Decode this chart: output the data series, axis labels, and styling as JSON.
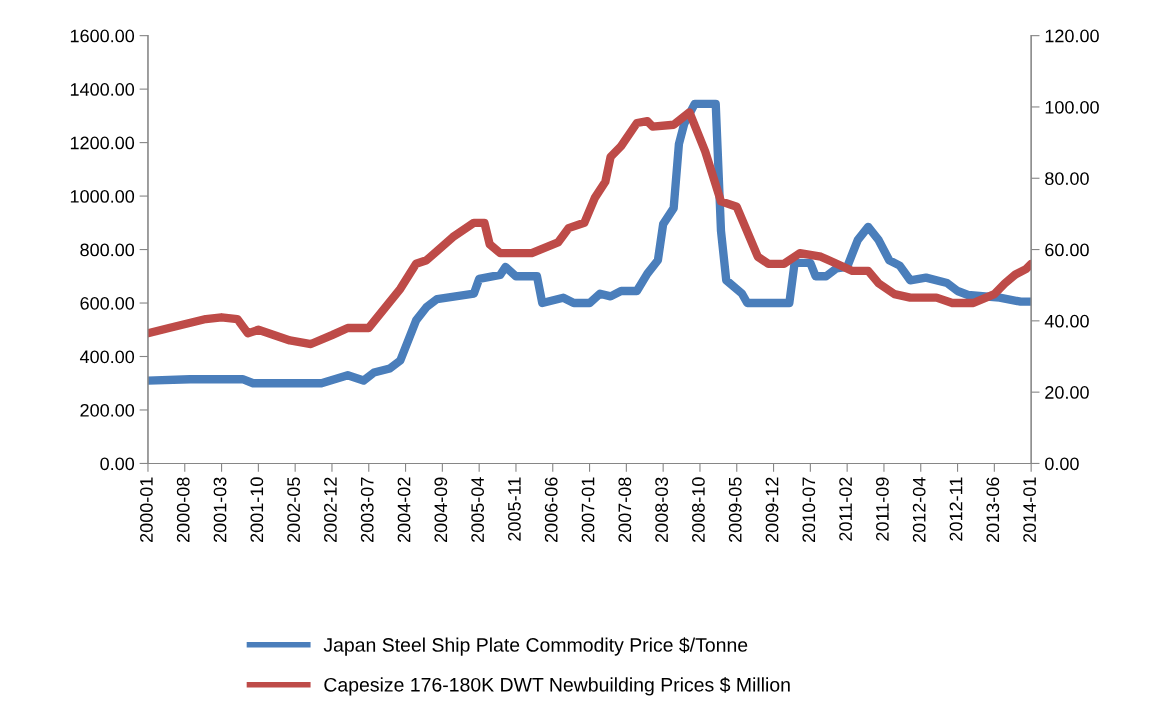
{
  "chart_data": {
    "type": "line",
    "legend": "bottom",
    "grid": false,
    "marker": "none",
    "line_style": "solid",
    "xlim": [
      "2000-01",
      "2014-01"
    ],
    "xticks": [
      "2000-01",
      "2000-08",
      "2001-03",
      "2001-10",
      "2002-05",
      "2002-12",
      "2003-07",
      "2004-02",
      "2004-09",
      "2005-04",
      "2005-11",
      "2006-06",
      "2007-01",
      "2007-08",
      "2008-03",
      "2008-10",
      "2009-05",
      "2009-12",
      "2010-07",
      "2011-02",
      "2011-09",
      "2012-04",
      "2012-11",
      "2013-06",
      "2014-01"
    ],
    "ylim": [
      0,
      1600
    ],
    "yticks": [
      {
        "value": 0,
        "label": "0.00"
      },
      {
        "value": 200,
        "label": "200.00"
      },
      {
        "value": 400,
        "label": "400.00"
      },
      {
        "value": 600,
        "label": "600.00"
      },
      {
        "value": 800,
        "label": "800.00"
      },
      {
        "value": 1000,
        "label": "1000.00"
      },
      {
        "value": 1200,
        "label": "1200.00"
      },
      {
        "value": 1400,
        "label": "1400.00"
      },
      {
        "value": 1600,
        "label": "1600.00"
      }
    ],
    "y2lim": [
      0,
      120
    ],
    "y2ticks": [
      {
        "value": 0,
        "label": "0.00"
      },
      {
        "value": 20,
        "label": "20.00"
      },
      {
        "value": 40,
        "label": "40.00"
      },
      {
        "value": 60,
        "label": "60.00"
      },
      {
        "value": 80,
        "label": "80.00"
      },
      {
        "value": 100,
        "label": "100.00"
      },
      {
        "value": 120,
        "label": "120.00"
      }
    ],
    "series": [
      {
        "name": "Japan Steel Ship Plate Commodity Price $/Tonne",
        "color": "#4a7ebb",
        "axis": "y",
        "x": [
          "2000-01",
          "2000-09",
          "2001-07",
          "2001-09",
          "2002-10",
          "2003-03",
          "2003-06",
          "2003-08",
          "2003-11",
          "2004-01",
          "2004-04",
          "2004-06",
          "2004-08",
          "2005-03",
          "2005-04",
          "2005-08",
          "2005-09",
          "2005-11",
          "2006-03",
          "2006-04",
          "2006-08",
          "2006-10",
          "2007-01",
          "2007-03",
          "2007-05",
          "2007-07",
          "2007-10",
          "2007-12",
          "2008-02",
          "2008-03",
          "2008-05",
          "2008-06",
          "2008-07",
          "2008-09",
          "2009-01",
          "2009-02",
          "2009-03",
          "2009-06",
          "2009-07",
          "2010-03",
          "2010-04",
          "2010-07",
          "2010-08",
          "2010-10",
          "2010-12",
          "2011-02",
          "2011-04",
          "2011-06",
          "2011-08",
          "2011-10",
          "2011-12",
          "2012-02",
          "2012-05",
          "2012-09",
          "2012-11",
          "2013-01",
          "2013-07",
          "2013-11",
          "2014-01"
        ],
        "values": [
          310,
          315,
          315,
          300,
          300,
          330,
          310,
          340,
          355,
          385,
          535,
          585,
          615,
          635,
          690,
          705,
          735,
          700,
          700,
          600,
          620,
          600,
          600,
          635,
          625,
          645,
          645,
          710,
          760,
          895,
          955,
          1195,
          1270,
          1345,
          1345,
          870,
          685,
          635,
          600,
          600,
          750,
          750,
          700,
          700,
          730,
          735,
          835,
          885,
          835,
          760,
          740,
          685,
          695,
          675,
          645,
          630,
          620,
          605,
          605
        ]
      },
      {
        "name": "Capesize 176-180K DWT Newbuilding Prices $ Million",
        "color": "#be4b48",
        "axis": "y2",
        "x": [
          "2000-01",
          "2000-05",
          "2000-12",
          "2001-03",
          "2001-06",
          "2001-08",
          "2001-10",
          "2002-04",
          "2002-08",
          "2002-12",
          "2003-03",
          "2003-07",
          "2003-10",
          "2004-01",
          "2004-04",
          "2004-06",
          "2004-11",
          "2005-03",
          "2005-05",
          "2005-06",
          "2005-08",
          "2006-02",
          "2006-07",
          "2006-09",
          "2006-12",
          "2007-02",
          "2007-04",
          "2007-05",
          "2007-07",
          "2007-10",
          "2007-12",
          "2008-01",
          "2008-05",
          "2008-08",
          "2008-11",
          "2009-02",
          "2009-05",
          "2009-09",
          "2009-11",
          "2010-02",
          "2010-05",
          "2010-09",
          "2010-12",
          "2011-03",
          "2011-06",
          "2011-08",
          "2011-11",
          "2012-02",
          "2012-07",
          "2012-10",
          "2013-02",
          "2013-06",
          "2013-08",
          "2013-10",
          "2013-12",
          "2014-01"
        ],
        "values": [
          36.5,
          38,
          40.5,
          41,
          40.5,
          36.5,
          37.5,
          34.5,
          33.5,
          36,
          38,
          38,
          43.5,
          49,
          56,
          57,
          63.5,
          67.5,
          67.5,
          61.5,
          59,
          59,
          62,
          66,
          67.5,
          74.5,
          79,
          86,
          89,
          95.5,
          96,
          94.5,
          95,
          98.5,
          87.5,
          73.5,
          72,
          58,
          56,
          56,
          59,
          58,
          56,
          54,
          54,
          50.5,
          47.5,
          46.5,
          46.5,
          45,
          45,
          47.5,
          50.5,
          53,
          54.5,
          56
        ]
      }
    ]
  }
}
